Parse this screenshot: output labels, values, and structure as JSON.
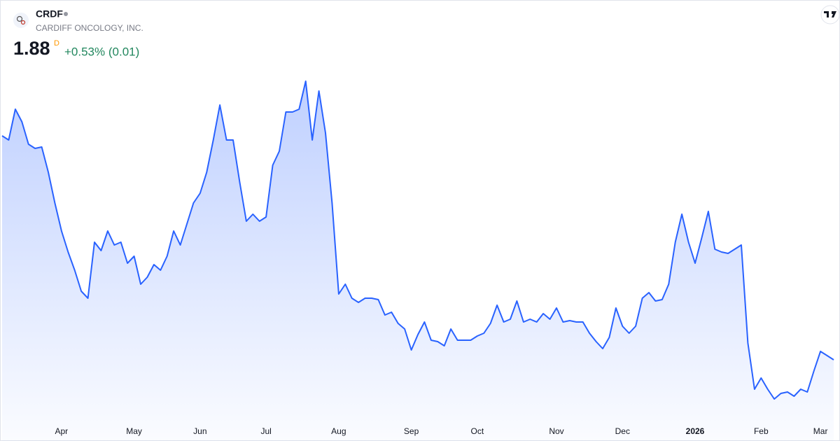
{
  "chart_data": {
    "type": "area",
    "symbol": "CRDF",
    "name": "CARDIFF ONCOLOGY, INC.",
    "price": "1.88",
    "interval": "D",
    "change": "+0.53% (0.01)",
    "color": "#2962ff",
    "change_color": "#22875e",
    "ylim": [
      1.3,
      4.45
    ],
    "categories": [
      null,
      null,
      null,
      null,
      null,
      null,
      null,
      null,
      null,
      "Apr",
      null,
      null,
      null,
      null,
      null,
      null,
      null,
      null,
      null,
      null,
      "May",
      null,
      null,
      null,
      null,
      null,
      null,
      null,
      null,
      null,
      "Jun",
      null,
      null,
      null,
      null,
      null,
      null,
      null,
      null,
      null,
      "Jul",
      null,
      null,
      null,
      null,
      null,
      null,
      null,
      null,
      null,
      null,
      "Aug",
      null,
      null,
      null,
      null,
      null,
      null,
      null,
      null,
      null,
      null,
      "Sep",
      null,
      null,
      null,
      null,
      null,
      null,
      null,
      null,
      null,
      "Oct",
      null,
      null,
      null,
      null,
      null,
      null,
      null,
      null,
      null,
      null,
      null,
      "Nov",
      null,
      null,
      null,
      null,
      null,
      null,
      null,
      null,
      null,
      "Dec",
      null,
      null,
      null,
      null,
      null,
      null,
      null,
      null,
      null,
      null,
      "2026",
      null,
      null,
      null,
      null,
      null,
      null,
      null,
      null,
      null,
      "Feb",
      null,
      null,
      null,
      null,
      null,
      null,
      null,
      null,
      "Mar",
      null,
      null
    ],
    "values": [
      3.48,
      3.45,
      3.67,
      3.58,
      3.42,
      3.39,
      3.4,
      3.22,
      3.0,
      2.8,
      2.65,
      2.52,
      2.37,
      2.32,
      2.72,
      2.66,
      2.8,
      2.7,
      2.72,
      2.57,
      2.62,
      2.42,
      2.47,
      2.56,
      2.52,
      2.62,
      2.8,
      2.7,
      2.85,
      3.0,
      3.07,
      3.22,
      3.45,
      3.7,
      3.45,
      3.45,
      3.15,
      2.87,
      2.92,
      2.87,
      2.9,
      3.27,
      3.37,
      3.65,
      3.65,
      3.67,
      3.87,
      3.45,
      3.8,
      3.5,
      3.0,
      2.35,
      2.42,
      2.32,
      2.29,
      2.32,
      2.32,
      2.31,
      2.2,
      2.22,
      2.14,
      2.1,
      1.95,
      2.06,
      2.15,
      2.02,
      2.01,
      1.98,
      2.1,
      2.02,
      2.02,
      2.02,
      2.05,
      2.07,
      2.14,
      2.27,
      2.15,
      2.17,
      2.3,
      2.15,
      2.17,
      2.15,
      2.21,
      2.17,
      2.25,
      2.15,
      2.16,
      2.15,
      2.15,
      2.07,
      2.01,
      1.96,
      2.04,
      2.25,
      2.12,
      2.07,
      2.12,
      2.32,
      2.36,
      2.3,
      2.31,
      2.42,
      2.72,
      2.92,
      2.72,
      2.57,
      2.75,
      2.94,
      2.67,
      2.65,
      2.64,
      2.67,
      2.7,
      2.0,
      1.67,
      1.75,
      1.67,
      1.6,
      1.64,
      1.65,
      1.62,
      1.67,
      1.65,
      1.8,
      1.94,
      1.91,
      1.88
    ]
  }
}
